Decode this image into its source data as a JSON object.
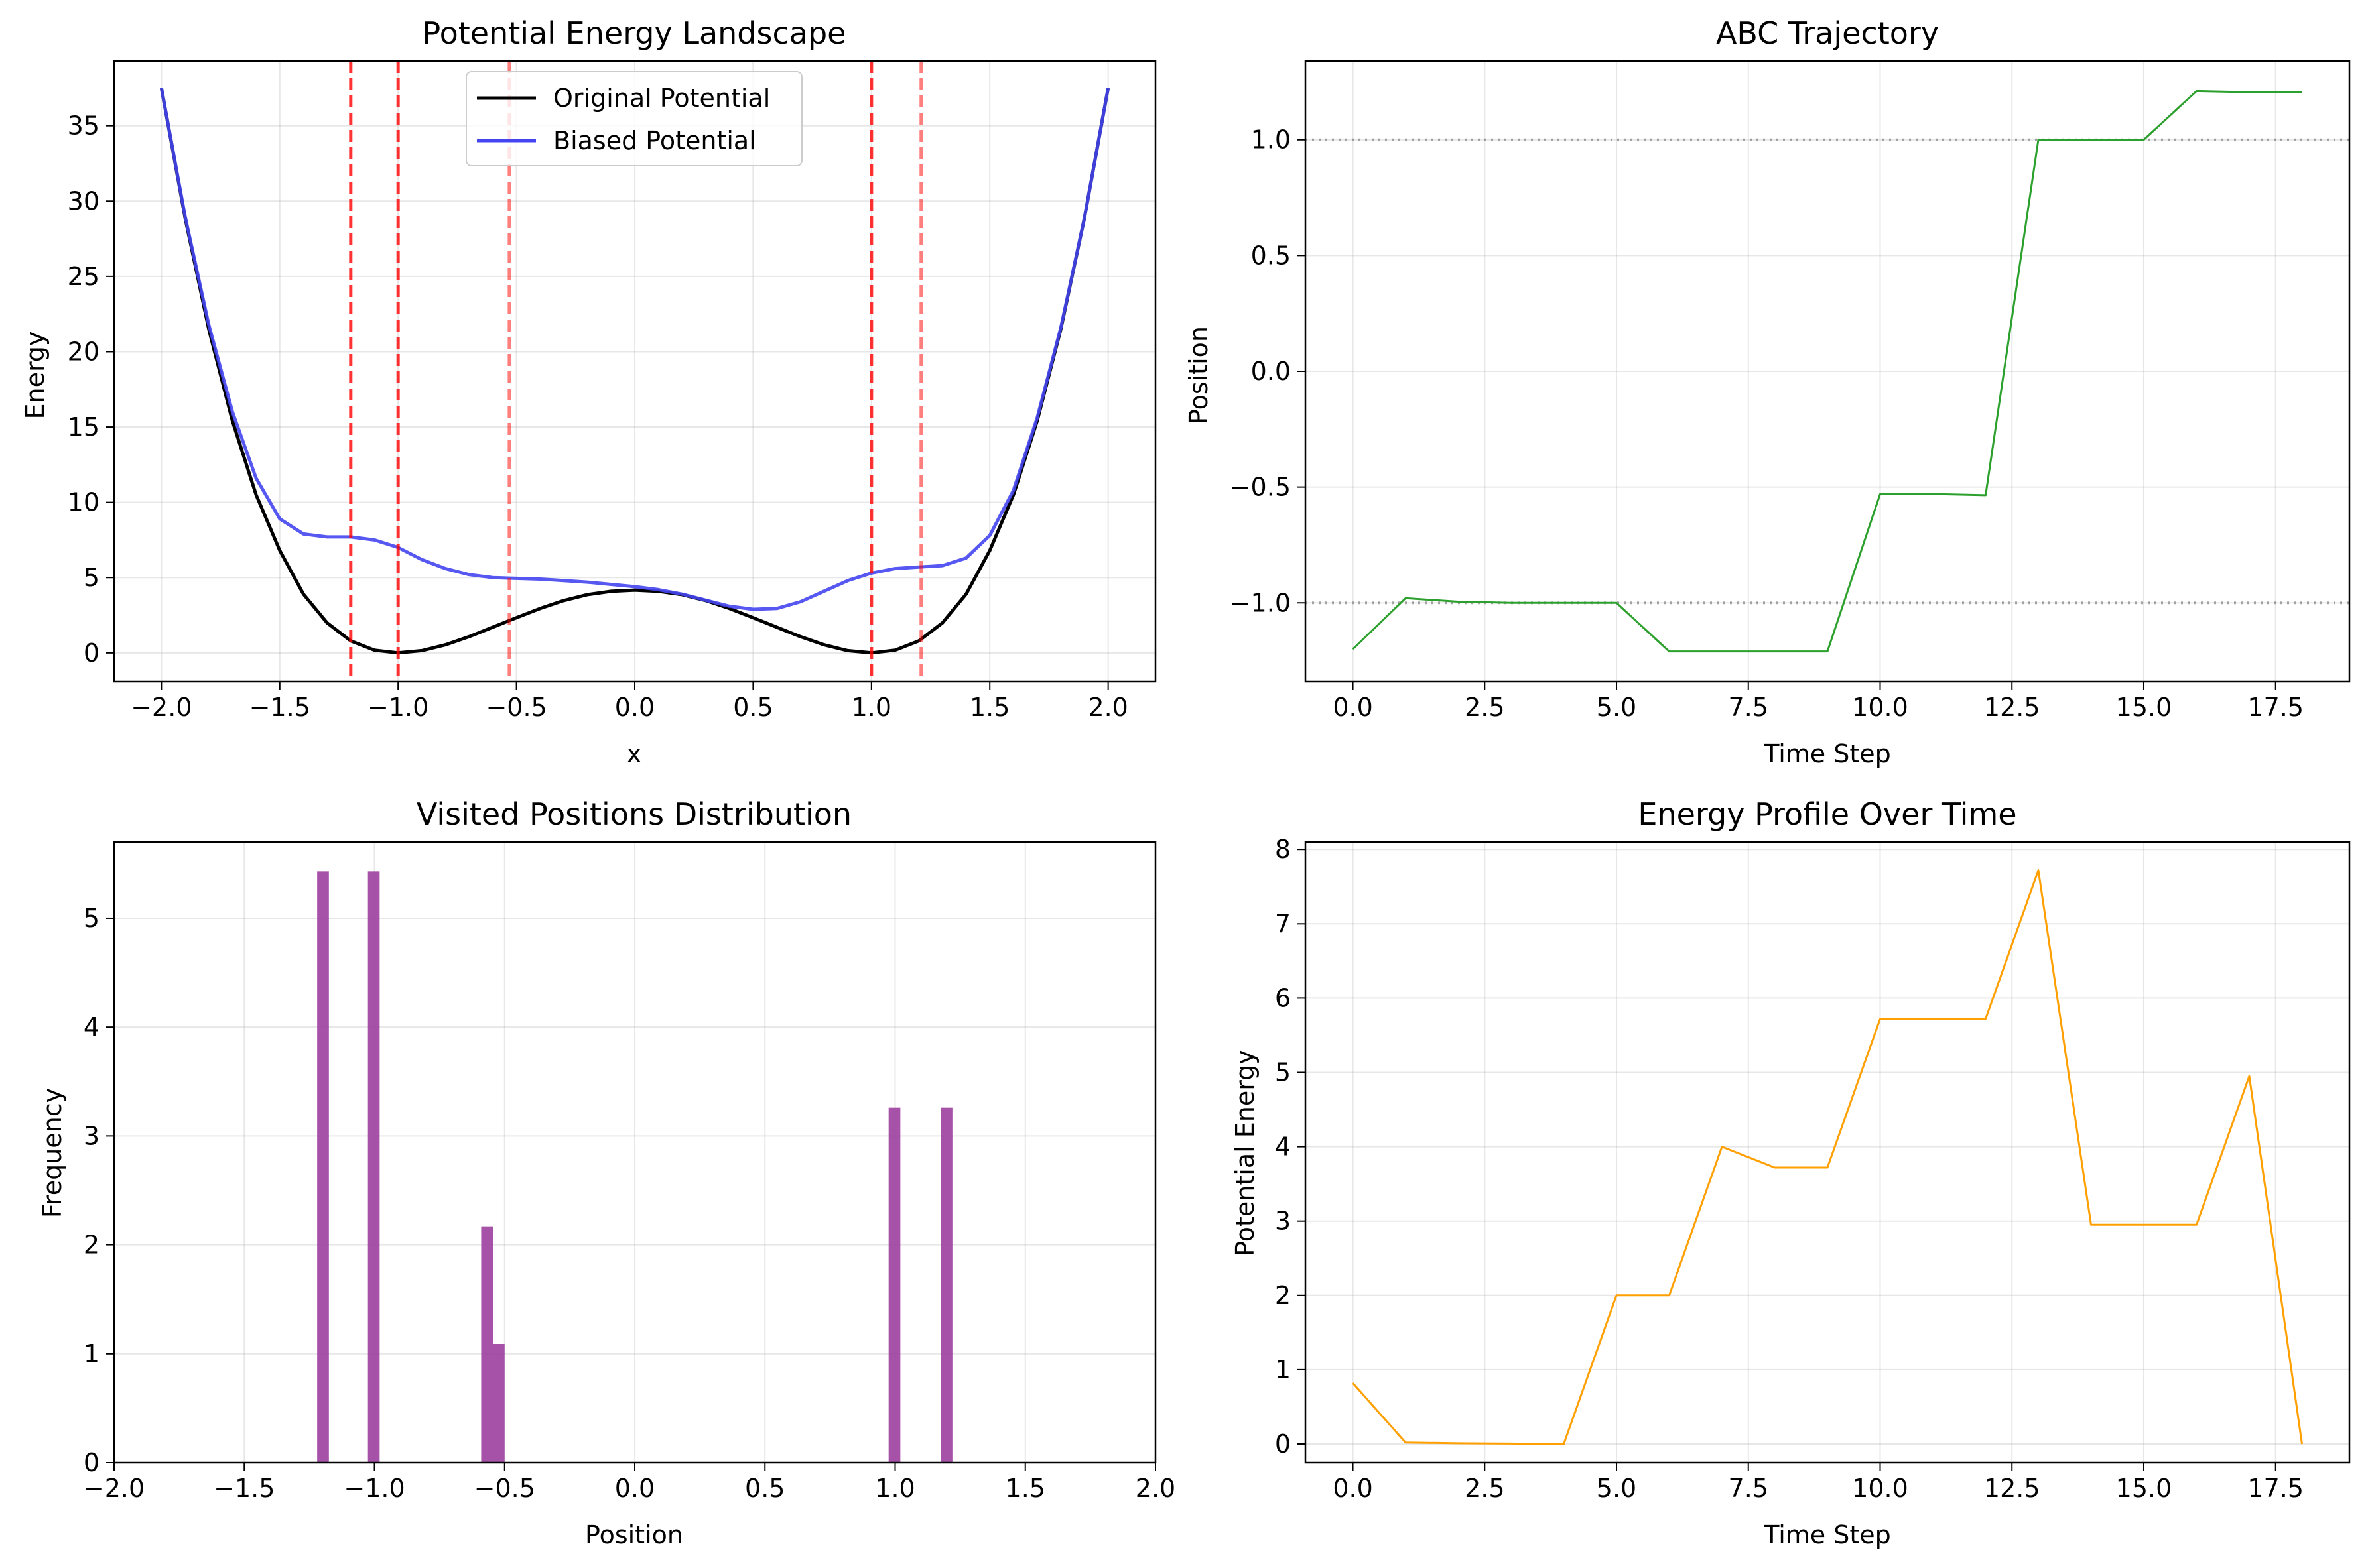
{
  "chart_data": [
    {
      "type": "line",
      "title": "Potential Energy Landscape",
      "xlabel": "x",
      "ylabel": "Energy",
      "xlim": [
        -2.2,
        2.2
      ],
      "ylim": [
        -1.9,
        39.3
      ],
      "xticks": [
        -2.0,
        -1.5,
        -1.0,
        -0.5,
        0.0,
        0.5,
        1.0,
        1.5,
        2.0
      ],
      "xtick_labels": [
        "−2.0",
        "−1.5",
        "−1.0",
        "−0.5",
        "0.0",
        "0.5",
        "1.0",
        "1.5",
        "2.0"
      ],
      "yticks": [
        0,
        5,
        10,
        15,
        20,
        25,
        30,
        35
      ],
      "ytick_labels": [
        "0",
        "5",
        "10",
        "15",
        "20",
        "25",
        "30",
        "35"
      ],
      "grid": true,
      "legend": "upper center",
      "series": [
        {
          "name": "Original Potential",
          "color": "#000000",
          "x": [
            -2.0,
            -1.9,
            -1.8,
            -1.7,
            -1.6,
            -1.5,
            -1.4,
            -1.3,
            -1.2,
            -1.1,
            -1.0,
            -0.9,
            -0.8,
            -0.7,
            -0.6,
            -0.5,
            -0.4,
            -0.3,
            -0.2,
            -0.1,
            0.0,
            0.1,
            0.2,
            0.3,
            0.4,
            0.5,
            0.6,
            0.7,
            0.8,
            0.9,
            1.0,
            1.1,
            1.2,
            1.3,
            1.4,
            1.5,
            1.6,
            1.7,
            1.8,
            1.9,
            2.0
          ],
          "values": [
            37.5,
            28.9,
            21.5,
            15.4,
            10.5,
            6.8,
            3.9,
            2.0,
            0.8,
            0.18,
            0.0,
            0.15,
            0.54,
            1.08,
            1.71,
            2.34,
            2.95,
            3.48,
            3.87,
            4.09,
            4.17,
            4.09,
            3.87,
            3.48,
            2.95,
            2.34,
            1.71,
            1.08,
            0.54,
            0.15,
            0.0,
            0.18,
            0.8,
            2.0,
            3.9,
            6.8,
            10.5,
            15.4,
            21.5,
            28.9,
            37.5
          ]
        },
        {
          "name": "Biased Potential",
          "color": "#4545f0",
          "x": [
            -2.0,
            -1.9,
            -1.8,
            -1.7,
            -1.6,
            -1.5,
            -1.4,
            -1.3,
            -1.2,
            -1.1,
            -1.0,
            -0.9,
            -0.8,
            -0.7,
            -0.6,
            -0.5,
            -0.4,
            -0.3,
            -0.2,
            -0.1,
            0.0,
            0.1,
            0.2,
            0.3,
            0.4,
            0.5,
            0.6,
            0.7,
            0.8,
            0.9,
            1.0,
            1.1,
            1.2,
            1.3,
            1.4,
            1.5,
            1.6,
            1.7,
            1.8,
            1.9,
            2.0
          ],
          "values": [
            37.5,
            29.0,
            21.8,
            16.0,
            11.6,
            8.9,
            7.9,
            7.7,
            7.7,
            7.5,
            7.0,
            6.2,
            5.6,
            5.2,
            5.0,
            4.95,
            4.9,
            4.8,
            4.7,
            4.55,
            4.4,
            4.2,
            3.9,
            3.5,
            3.1,
            2.9,
            2.95,
            3.4,
            4.1,
            4.8,
            5.3,
            5.6,
            5.7,
            5.8,
            6.3,
            7.8,
            10.8,
            15.6,
            21.6,
            28.9,
            37.5
          ]
        }
      ],
      "vlines": [
        {
          "x": -1.2,
          "color": "#ff0000",
          "opacity": 0.8
        },
        {
          "x": -1.0,
          "color": "#ff0000",
          "opacity": 0.8
        },
        {
          "x": -0.53,
          "color": "#ff0000",
          "opacity": 0.5
        },
        {
          "x": 1.0,
          "color": "#ff0000",
          "opacity": 0.8
        },
        {
          "x": 1.21,
          "color": "#ff0000",
          "opacity": 0.5
        }
      ]
    },
    {
      "type": "line",
      "title": "ABC Trajectory",
      "xlabel": "Time Step",
      "ylabel": "Position",
      "xlim": [
        -0.9,
        18.9
      ],
      "ylim": [
        -1.34,
        1.34
      ],
      "xticks": [
        0.0,
        2.5,
        5.0,
        7.5,
        10.0,
        12.5,
        15.0,
        17.5
      ],
      "xtick_labels": [
        "0.0",
        "2.5",
        "5.0",
        "7.5",
        "10.0",
        "12.5",
        "15.0",
        "17.5"
      ],
      "yticks": [
        -1.0,
        -0.5,
        0.0,
        0.5,
        1.0
      ],
      "ytick_labels": [
        "−1.0",
        "−0.5",
        "0.0",
        "0.5",
        "1.0"
      ],
      "grid": true,
      "series": [
        {
          "color": "#2ca02c",
          "x": [
            0,
            1,
            2,
            3,
            4,
            5,
            6,
            7,
            8,
            9,
            10,
            11,
            12,
            13,
            14,
            15,
            16,
            17,
            18
          ],
          "values": [
            -1.2,
            -0.98,
            -0.995,
            -1.0,
            -1.0,
            -1.0,
            -1.21,
            -1.21,
            -1.21,
            -1.21,
            -0.53,
            -0.53,
            -0.535,
            1.0,
            1.0,
            1.0,
            1.21,
            1.205,
            1.205
          ]
        }
      ],
      "hlines": [
        {
          "y": -1.0,
          "color": "#808080"
        },
        {
          "y": 1.0,
          "color": "#808080"
        }
      ]
    },
    {
      "type": "bar",
      "title": "Visited Positions Distribution",
      "xlabel": "Position",
      "ylabel": "Frequency",
      "xlim": [
        -2.0,
        2.0
      ],
      "ylim": [
        0,
        5.7
      ],
      "xticks": [
        -2.0,
        -1.5,
        -1.0,
        -0.5,
        0.0,
        0.5,
        1.0,
        1.5,
        2.0
      ],
      "xtick_labels": [
        "−2.0",
        "−1.5",
        "−1.0",
        "−0.5",
        "0.0",
        "0.5",
        "1.0",
        "1.5",
        "2.0"
      ],
      "yticks": [
        0,
        1,
        2,
        3,
        4,
        5
      ],
      "ytick_labels": [
        "0",
        "1",
        "2",
        "3",
        "4",
        "5"
      ],
      "grid": true,
      "color": "#9b3f9e",
      "bins": [
        {
          "x0": -1.22,
          "x1": -1.175,
          "value": 5.43
        },
        {
          "x0": -1.025,
          "x1": -0.98,
          "value": 5.43
        },
        {
          "x0": -0.59,
          "x1": -0.545,
          "value": 2.17
        },
        {
          "x0": -0.545,
          "x1": -0.5,
          "value": 1.09
        },
        {
          "x0": 0.975,
          "x1": 1.02,
          "value": 3.26
        },
        {
          "x0": 1.175,
          "x1": 1.22,
          "value": 3.26
        }
      ]
    },
    {
      "type": "line",
      "title": "Energy Profile Over Time",
      "xlabel": "Time Step",
      "ylabel": "Potential Energy",
      "xlim": [
        -0.9,
        18.9
      ],
      "ylim": [
        -0.25,
        8.1
      ],
      "xticks": [
        0.0,
        2.5,
        5.0,
        7.5,
        10.0,
        12.5,
        15.0,
        17.5
      ],
      "xtick_labels": [
        "0.0",
        "2.5",
        "5.0",
        "7.5",
        "10.0",
        "12.5",
        "15.0",
        "17.5"
      ],
      "yticks": [
        0,
        1,
        2,
        3,
        4,
        5,
        6,
        7,
        8
      ],
      "ytick_labels": [
        "0",
        "1",
        "2",
        "3",
        "4",
        "5",
        "6",
        "7",
        "8"
      ],
      "grid": true,
      "series": [
        {
          "color": "#ff9f00",
          "x": [
            0,
            1,
            2,
            3,
            4,
            5,
            6,
            7,
            8,
            9,
            10,
            11,
            12,
            13,
            14,
            15,
            16,
            17,
            18
          ],
          "values": [
            0.82,
            0.02,
            0.01,
            0.005,
            0.0,
            2.0,
            2.0,
            4.0,
            3.72,
            3.72,
            5.72,
            5.72,
            5.72,
            7.72,
            2.95,
            2.95,
            2.95,
            4.95,
            0.0
          ]
        }
      ]
    }
  ]
}
